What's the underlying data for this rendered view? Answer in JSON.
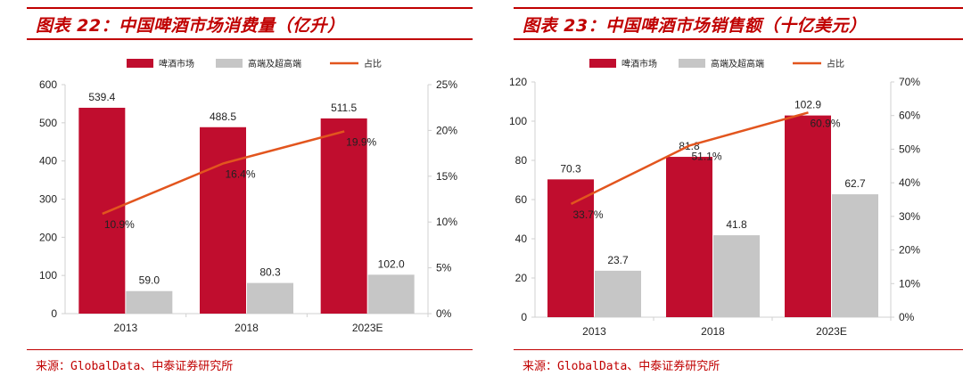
{
  "colors": {
    "accent": "#c00000",
    "bar_main": "#c00d2e",
    "bar_secondary": "#c6c6c6",
    "line": "#e2551e",
    "axis": "#d0d0d0"
  },
  "charts": [
    {
      "title": "图表 22：中国啤酒市场消费量（亿升）",
      "source": "来源：GlobalData、中泰证券研究所"
    },
    {
      "title": "图表 23：中国啤酒市场销售额（十亿美元）",
      "source": "来源：GlobalData、中泰证券研究所"
    }
  ],
  "chart_data": [
    {
      "type": "bar",
      "title": "图表 22：中国啤酒市场消费量（亿升）",
      "categories": [
        "2013",
        "2018",
        "2023E"
      ],
      "series": [
        {
          "name": "啤酒市场",
          "kind": "bar",
          "axis": "left",
          "values": [
            539.4,
            488.5,
            511.5
          ],
          "labels": [
            "539.4",
            "488.5",
            "511.5"
          ]
        },
        {
          "name": "高端及超高端",
          "kind": "bar",
          "axis": "left",
          "values": [
            59.0,
            80.3,
            102.0
          ],
          "labels": [
            "59.0",
            "80.3",
            "102.0"
          ]
        },
        {
          "name": "占比",
          "kind": "line",
          "axis": "right",
          "values": [
            10.9,
            16.4,
            19.9
          ],
          "labels": [
            "10.9%",
            "16.4%",
            "19.9%"
          ]
        }
      ],
      "ylim": [
        0,
        600
      ],
      "yticks": [
        "0",
        "100",
        "200",
        "300",
        "400",
        "500",
        "600"
      ],
      "y2lim": [
        0,
        25
      ],
      "y2ticks": [
        "0%",
        "5%",
        "10%",
        "15%",
        "20%",
        "25%"
      ],
      "legend": "top-center"
    },
    {
      "type": "bar",
      "title": "图表 23：中国啤酒市场销售额（十亿美元）",
      "categories": [
        "2013",
        "2018",
        "2023E"
      ],
      "series": [
        {
          "name": "啤酒市场",
          "kind": "bar",
          "axis": "left",
          "values": [
            70.3,
            81.8,
            102.9
          ],
          "labels": [
            "70.3",
            "81.8",
            "102.9"
          ]
        },
        {
          "name": "高端及超高端",
          "kind": "bar",
          "axis": "left",
          "values": [
            23.7,
            41.8,
            62.7
          ],
          "labels": [
            "23.7",
            "41.8",
            "62.7"
          ]
        },
        {
          "name": "占比",
          "kind": "line",
          "axis": "right",
          "values": [
            33.7,
            51.1,
            60.9
          ],
          "labels": [
            "33.7%",
            "51.1%",
            "60.9%"
          ]
        }
      ],
      "ylim": [
        0,
        120
      ],
      "yticks": [
        "0",
        "20",
        "40",
        "60",
        "80",
        "100",
        "120"
      ],
      "y2lim": [
        0,
        70
      ],
      "y2ticks": [
        "0%",
        "10%",
        "20%",
        "30%",
        "40%",
        "50%",
        "60%",
        "70%"
      ],
      "legend": "top-center"
    }
  ]
}
